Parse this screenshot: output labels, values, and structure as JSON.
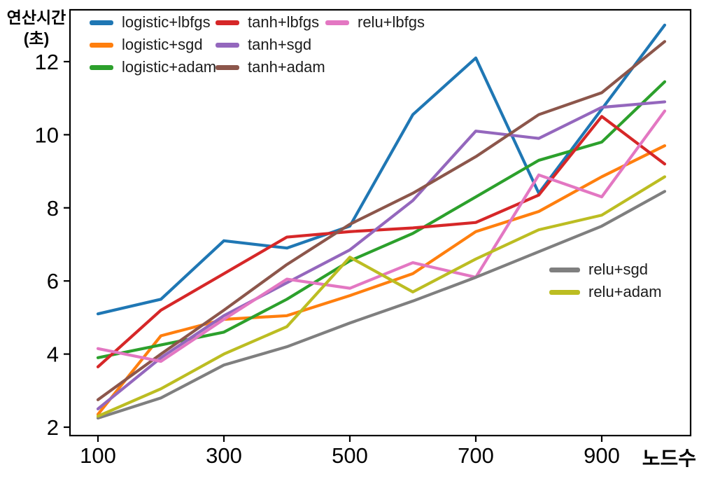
{
  "figure": {
    "background": "#ffffff",
    "ylabel_lines": [
      "연산시간",
      "(초)"
    ],
    "xlabel": "노드수"
  },
  "chart_data": {
    "type": "line",
    "title": "",
    "xlabel": "노드수",
    "ylabel": "연산시간 (초)",
    "x": [
      100,
      200,
      300,
      400,
      500,
      600,
      700,
      800,
      900,
      1000
    ],
    "xticks": [
      100,
      300,
      500,
      700,
      900
    ],
    "yticks": [
      2,
      4,
      6,
      8,
      10,
      12
    ],
    "xlim": [
      55,
      1040
    ],
    "ylim": [
      1.8,
      13.4
    ],
    "grid": false,
    "axis_color": "#000000",
    "legend_main_position": "top, 3 columns, no frame",
    "legend_side_position": "middle-right, no frame",
    "series": [
      {
        "name": "logistic+lbfgs",
        "color": "#1f77b4",
        "values": [
          5.1,
          5.5,
          7.1,
          6.9,
          7.5,
          10.55,
          12.1,
          8.4,
          10.7,
          13.0
        ]
      },
      {
        "name": "logistic+sgd",
        "color": "#ff7f0e",
        "values": [
          2.35,
          4.5,
          4.95,
          5.05,
          5.6,
          6.2,
          7.35,
          7.9,
          8.85,
          9.7
        ]
      },
      {
        "name": "logistic+adam",
        "color": "#2ca02c",
        "values": [
          3.9,
          4.25,
          4.6,
          5.5,
          6.55,
          7.3,
          8.3,
          9.3,
          9.8,
          11.45
        ]
      },
      {
        "name": "tanh+lbfgs",
        "color": "#d62728",
        "values": [
          3.65,
          5.2,
          6.2,
          7.2,
          7.35,
          7.45,
          7.6,
          8.35,
          10.5,
          9.2
        ]
      },
      {
        "name": "tanh+sgd",
        "color": "#9467bd",
        "values": [
          2.5,
          3.9,
          5.05,
          5.95,
          6.85,
          8.2,
          10.1,
          9.9,
          10.75,
          10.9
        ]
      },
      {
        "name": "tanh+adam",
        "color": "#8c564b",
        "values": [
          2.75,
          4.0,
          5.2,
          6.45,
          7.55,
          8.4,
          9.4,
          10.55,
          11.15,
          12.55
        ]
      },
      {
        "name": "relu+lbfgs",
        "color": "#e377c2",
        "values": [
          4.15,
          3.8,
          4.95,
          6.05,
          5.8,
          6.5,
          6.1,
          8.9,
          8.3,
          10.65
        ]
      },
      {
        "name": "relu+sgd",
        "color": "#7f7f7f",
        "values": [
          2.25,
          2.8,
          3.7,
          4.2,
          4.85,
          5.45,
          6.1,
          6.8,
          7.5,
          8.45
        ]
      },
      {
        "name": "relu+adam",
        "color": "#bcbd22",
        "values": [
          2.3,
          3.05,
          4.0,
          4.75,
          6.65,
          5.7,
          6.6,
          7.4,
          7.8,
          8.85
        ]
      }
    ],
    "legend_main": [
      "logistic+lbfgs",
      "logistic+sgd",
      "logistic+adam",
      "tanh+lbfgs",
      "tanh+sgd",
      "tanh+adam",
      "relu+lbfgs"
    ],
    "legend_side": [
      "relu+sgd",
      "relu+adam"
    ]
  }
}
